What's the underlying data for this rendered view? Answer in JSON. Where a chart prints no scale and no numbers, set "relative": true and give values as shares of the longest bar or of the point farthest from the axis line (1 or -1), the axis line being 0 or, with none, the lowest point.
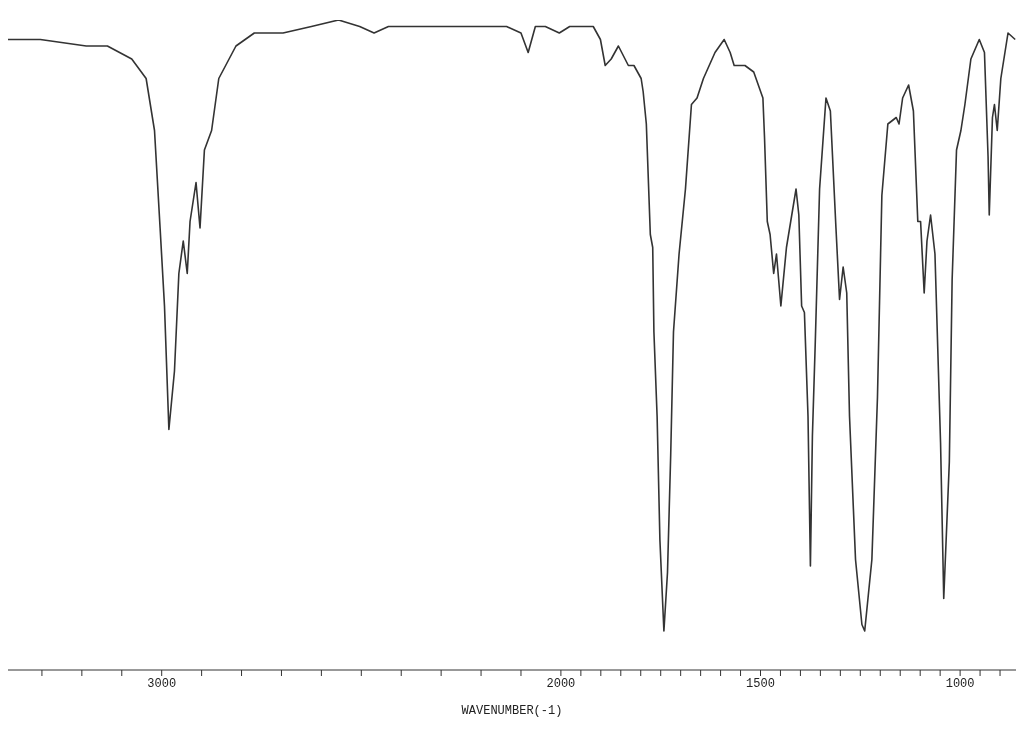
{
  "chart_data": {
    "type": "line",
    "relative": true,
    "xlabel": "WAVENUMBER(-1)",
    "color": "#333333",
    "marker": "none",
    "line_style": "solid",
    "grid": false,
    "legend": false,
    "xlim": [
      3385,
      860
    ],
    "xticks": [
      {
        "value": 3300,
        "label": null
      },
      {
        "value": 3200,
        "label": null
      },
      {
        "value": 3100,
        "label": null
      },
      3000,
      {
        "value": 2900,
        "label": null
      },
      {
        "value": 2800,
        "label": null
      },
      {
        "value": 2700,
        "label": null
      },
      {
        "value": 2600,
        "label": null
      },
      {
        "value": 2500,
        "label": null
      },
      {
        "value": 2400,
        "label": null
      },
      {
        "value": 2300,
        "label": null
      },
      {
        "value": 2200,
        "label": null
      },
      {
        "value": 2100,
        "label": null
      },
      2000,
      {
        "value": 1950,
        "label": null
      },
      {
        "value": 1900,
        "label": null
      },
      {
        "value": 1850,
        "label": null
      },
      {
        "value": 1800,
        "label": null
      },
      {
        "value": 1750,
        "label": null
      },
      {
        "value": 1700,
        "label": null
      },
      {
        "value": 1650,
        "label": null
      },
      {
        "value": 1600,
        "label": null
      },
      {
        "value": 1550,
        "label": null
      },
      1500,
      {
        "value": 1450,
        "label": null
      },
      {
        "value": 1400,
        "label": null
      },
      {
        "value": 1350,
        "label": null
      },
      {
        "value": 1300,
        "label": null
      },
      {
        "value": 1250,
        "label": null
      },
      {
        "value": 1200,
        "label": null
      },
      {
        "value": 1150,
        "label": null
      },
      {
        "value": 1100,
        "label": null
      },
      {
        "value": 1050,
        "label": null
      },
      1000,
      {
        "value": 950,
        "label": null
      },
      {
        "value": 900,
        "label": null
      }
    ],
    "x": [
      3385,
      3304,
      3189,
      3136,
      3075,
      3039,
      3018,
      3004,
      2993,
      2982,
      2968,
      2957,
      2946,
      2936,
      2929,
      2914,
      2904,
      2893,
      2875,
      2857,
      2814,
      2768,
      2696,
      2625,
      2557,
      2504,
      2468,
      2432,
      2375,
      2314,
      2243,
      2136,
      2100,
      2082,
      2064,
      2039,
      2004,
      1978,
      1919,
      1901,
      1889,
      1874,
      1856,
      1831,
      1817,
      1799,
      1794,
      1786,
      1776,
      1770,
      1767,
      1759,
      1752,
      1742,
      1733,
      1725,
      1718,
      1704,
      1688,
      1673,
      1659,
      1643,
      1614,
      1591,
      1576,
      1566,
      1539,
      1517,
      1494,
      1490,
      1483,
      1476,
      1467,
      1460,
      1449,
      1435,
      1411,
      1404,
      1397,
      1390,
      1381,
      1375,
      1370,
      1363,
      1352,
      1336,
      1325,
      1311,
      1302,
      1293,
      1284,
      1277,
      1262,
      1246,
      1239,
      1221,
      1207,
      1196,
      1181,
      1160,
      1153,
      1144,
      1129,
      1117,
      1106,
      1099,
      1090,
      1083,
      1074,
      1063,
      1049,
      1041,
      1027,
      1020,
      1009,
      998,
      988,
      973,
      952,
      939,
      930,
      927,
      919,
      914,
      907,
      898,
      880,
      862
    ],
    "values": [
      0.97,
      0.97,
      0.96,
      0.96,
      0.94,
      0.91,
      0.83,
      0.68,
      0.56,
      0.37,
      0.46,
      0.61,
      0.66,
      0.61,
      0.69,
      0.75,
      0.68,
      0.8,
      0.83,
      0.91,
      0.96,
      0.98,
      0.98,
      0.99,
      1,
      0.99,
      0.98,
      0.99,
      0.99,
      0.99,
      0.99,
      0.99,
      0.98,
      0.95,
      0.99,
      0.99,
      0.98,
      0.99,
      0.99,
      0.97,
      0.93,
      0.94,
      0.96,
      0.93,
      0.93,
      0.91,
      0.89,
      0.84,
      0.67,
      0.65,
      0.52,
      0.39,
      0.2,
      0.06,
      0.15,
      0.33,
      0.52,
      0.64,
      0.74,
      0.87,
      0.88,
      0.91,
      0.95,
      0.97,
      0.95,
      0.93,
      0.93,
      0.92,
      0.88,
      0.82,
      0.69,
      0.67,
      0.61,
      0.64,
      0.56,
      0.65,
      0.74,
      0.7,
      0.56,
      0.55,
      0.39,
      0.16,
      0.36,
      0.5,
      0.74,
      0.88,
      0.86,
      0.68,
      0.57,
      0.62,
      0.58,
      0.39,
      0.17,
      0.07,
      0.06,
      0.17,
      0.42,
      0.73,
      0.84,
      0.85,
      0.84,
      0.88,
      0.9,
      0.86,
      0.69,
      0.69,
      0.58,
      0.66,
      0.7,
      0.64,
      0.35,
      0.11,
      0.32,
      0.6,
      0.8,
      0.83,
      0.87,
      0.94,
      0.97,
      0.95,
      0.79,
      0.7,
      0.85,
      0.87,
      0.83,
      0.91,
      0.98,
      0.97
    ]
  }
}
